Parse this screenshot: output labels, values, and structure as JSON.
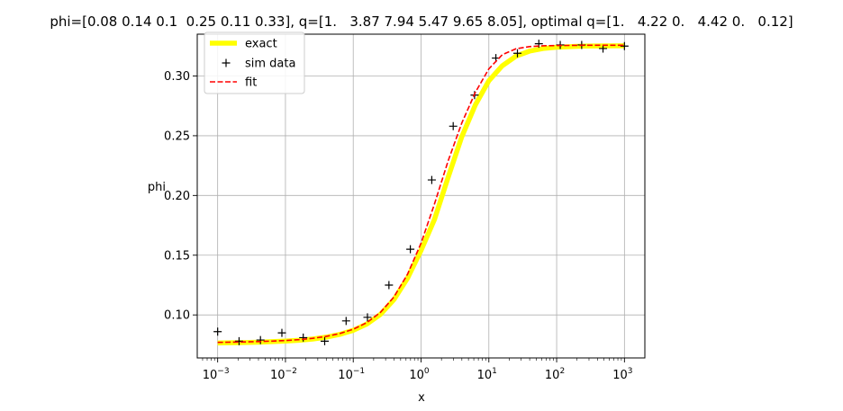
{
  "chart_data": {
    "type": "line",
    "title": "phi=[0.08 0.14 0.1  0.25 0.11 0.33], q=[1.   3.87 7.94 5.47 9.65 8.05], optimal q=[1.   4.22 0.   4.42 0.   0.12]",
    "xlabel": "x",
    "ylabel": "phi",
    "xscale": "log",
    "xlim": [
      0.0005,
      2000
    ],
    "ylim": [
      0.064,
      0.335
    ],
    "grid": true,
    "legend_position": "upper left",
    "x_ticks": [
      {
        "value": 0.001,
        "base": "10",
        "exp": "−3"
      },
      {
        "value": 0.01,
        "base": "10",
        "exp": "−2"
      },
      {
        "value": 0.1,
        "base": "10",
        "exp": "−1"
      },
      {
        "value": 1,
        "base": "10",
        "exp": "0"
      },
      {
        "value": 10,
        "base": "10",
        "exp": "1"
      },
      {
        "value": 100,
        "base": "10",
        "exp": "2"
      },
      {
        "value": 1000,
        "base": "10",
        "exp": "3"
      }
    ],
    "y_ticks": [
      {
        "value": 0.1,
        "label": "0.10"
      },
      {
        "value": 0.15,
        "label": "0.15"
      },
      {
        "value": 0.2,
        "label": "0.20"
      },
      {
        "value": 0.25,
        "label": "0.25"
      },
      {
        "value": 0.3,
        "label": "0.30"
      }
    ],
    "series": [
      {
        "name": "exact",
        "style": "line",
        "color": "#ffff00",
        "x": [
          0.001,
          0.00158,
          0.00251,
          0.00398,
          0.00631,
          0.01,
          0.0158,
          0.0251,
          0.0398,
          0.0631,
          0.1,
          0.158,
          0.251,
          0.398,
          0.631,
          1.0,
          1.58,
          2.51,
          3.98,
          6.31,
          10,
          15.8,
          25.1,
          39.8,
          63.1,
          100,
          158,
          251,
          398,
          631,
          1000
        ],
        "y": [
          0.0765,
          0.0767,
          0.0769,
          0.0772,
          0.0776,
          0.0781,
          0.0788,
          0.0798,
          0.0814,
          0.0837,
          0.0871,
          0.0923,
          0.1004,
          0.1128,
          0.1307,
          0.154,
          0.18,
          0.2152,
          0.249,
          0.2757,
          0.296,
          0.3086,
          0.3166,
          0.3208,
          0.323,
          0.3241,
          0.3246,
          0.325,
          0.3251,
          0.3252,
          0.3253
        ]
      },
      {
        "name": "sim data",
        "style": "markers",
        "color": "#000000",
        "x": [
          0.001,
          0.00207,
          0.00428,
          0.00886,
          0.0183,
          0.0379,
          0.0785,
          0.162,
          0.336,
          0.695,
          1.44,
          2.98,
          6.16,
          12.7,
          26.4,
          54.6,
          113,
          234,
          483,
          1000
        ],
        "y": [
          0.086,
          0.078,
          0.079,
          0.085,
          0.081,
          0.078,
          0.095,
          0.098,
          0.125,
          0.155,
          0.213,
          0.258,
          0.284,
          0.315,
          0.319,
          0.327,
          0.326,
          0.326,
          0.323,
          0.325
        ]
      },
      {
        "name": "fit",
        "style": "dashed",
        "color": "#ff0000",
        "x": [
          0.001,
          0.00158,
          0.00251,
          0.00398,
          0.00631,
          0.01,
          0.0158,
          0.0251,
          0.0398,
          0.0631,
          0.1,
          0.158,
          0.251,
          0.398,
          0.631,
          1.0,
          1.58,
          2.51,
          3.98,
          6.31,
          10,
          15.8,
          25.1,
          39.8,
          63.1,
          100,
          158,
          251,
          398,
          631,
          1000
        ],
        "y": [
          0.077,
          0.0772,
          0.0774,
          0.0777,
          0.0781,
          0.0786,
          0.0793,
          0.0804,
          0.082,
          0.0844,
          0.088,
          0.0935,
          0.102,
          0.115,
          0.134,
          0.16,
          0.193,
          0.229,
          0.2605,
          0.2862,
          0.306,
          0.3178,
          0.3228,
          0.3246,
          0.3253,
          0.3255,
          0.3256,
          0.3257,
          0.3257,
          0.3257,
          0.3257
        ]
      }
    ]
  }
}
